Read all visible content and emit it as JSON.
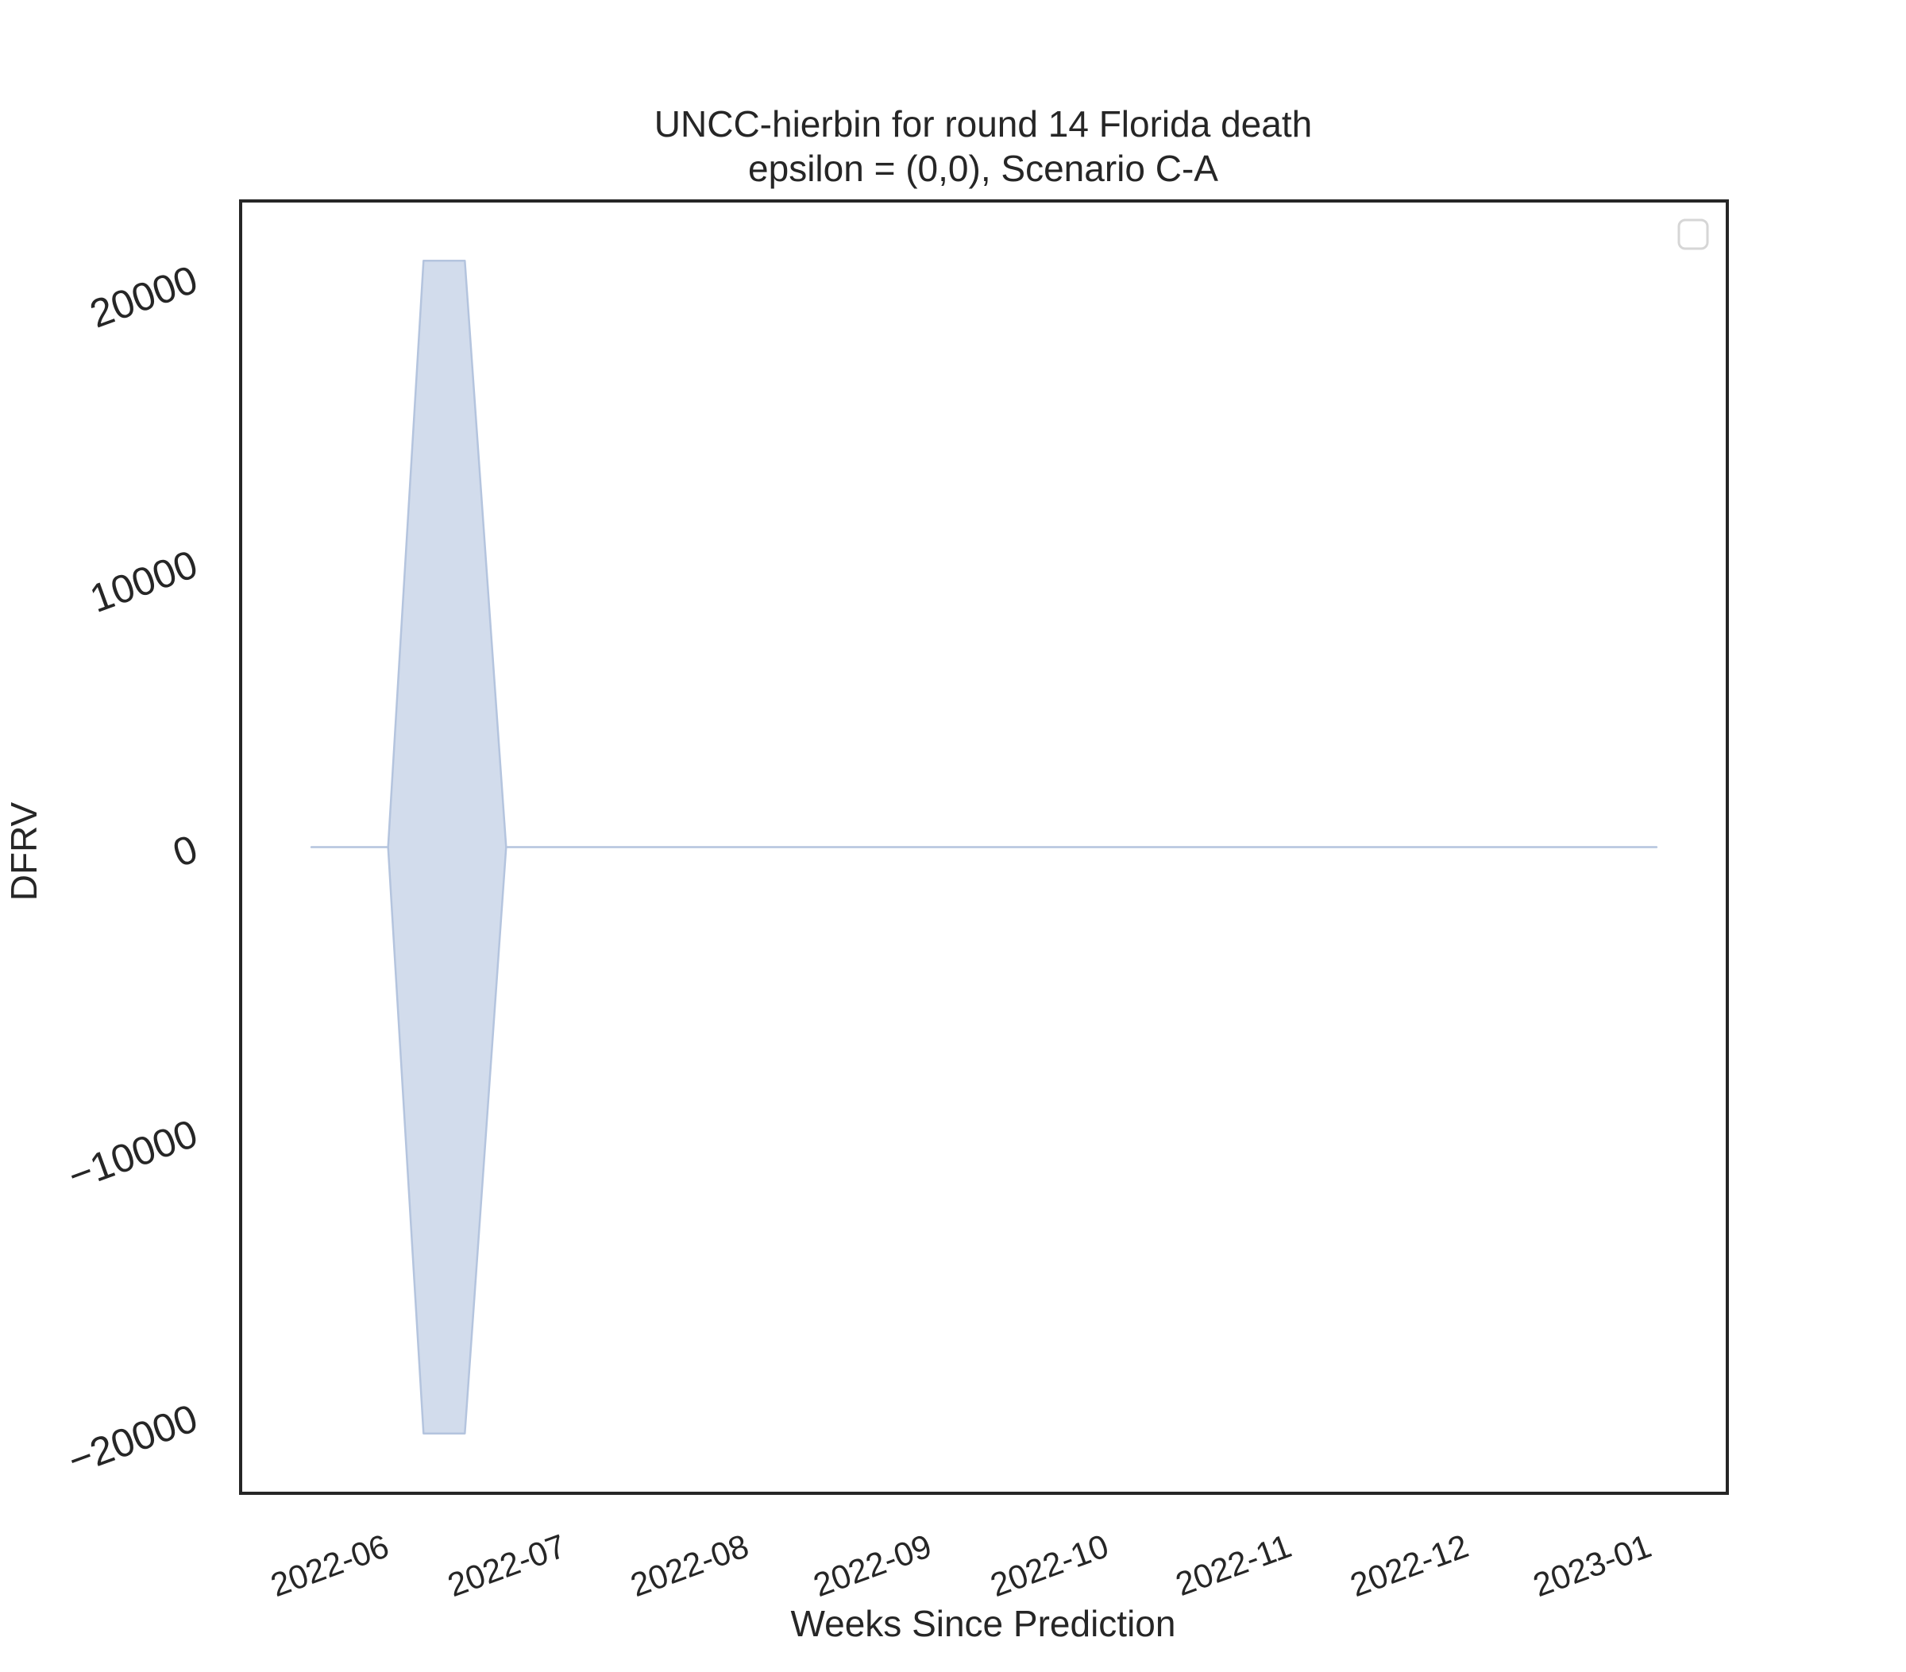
{
  "chart_data": {
    "type": "area",
    "title": "UNCC-hierbin for round 14 Florida death",
    "subtitle": "epsilon = (0,0), Scenario C-A",
    "xlabel": "Weeks Since Prediction",
    "ylabel": "DFRV",
    "x_ticks": [
      "2022-06",
      "2022-07",
      "2022-08",
      "2022-09",
      "2022-10",
      "2022-11",
      "2022-12",
      "2023-01"
    ],
    "y_ticks": [
      20000,
      10000,
      0,
      -10000,
      -20000
    ],
    "y_tick_labels": [
      "20000",
      "10000",
      "0",
      "−10000",
      "−20000"
    ],
    "xlim": [
      "2022-05-10",
      "2023-01-17"
    ],
    "ylim": [
      -22700,
      22700
    ],
    "grid": false,
    "legend": {
      "placement": "top-right",
      "entries": []
    },
    "series": [
      {
        "color": "#d2dcec",
        "edge_color": "#b4c4de",
        "points": [
          {
            "x": "2022-05-22",
            "upper": 0,
            "lower": 0
          },
          {
            "x": "2022-06-04",
            "upper": 0,
            "lower": 0
          },
          {
            "x": "2022-06-10",
            "upper": 20600,
            "lower": -20600
          },
          {
            "x": "2022-06-17",
            "upper": 20600,
            "lower": -20600
          },
          {
            "x": "2022-06-24",
            "upper": 0,
            "lower": 0
          },
          {
            "x": "2023-01-05",
            "upper": 0,
            "lower": 0
          }
        ]
      }
    ]
  }
}
